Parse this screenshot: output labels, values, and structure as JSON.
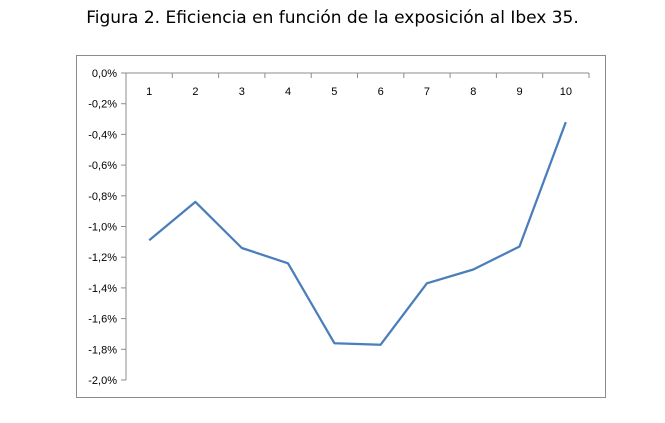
{
  "figure": {
    "title": "Figura 2. Eficiencia en función de la exposición al Ibex 35."
  },
  "chart_data": {
    "type": "line",
    "title": "",
    "xlabel": "",
    "ylabel": "",
    "categories": [
      "1",
      "2",
      "3",
      "4",
      "5",
      "6",
      "7",
      "8",
      "9",
      "10"
    ],
    "series": [
      {
        "values": [
          -1.09,
          -0.84,
          -1.14,
          -1.24,
          -1.76,
          -1.77,
          -1.37,
          -1.28,
          -1.13,
          -0.32
        ]
      }
    ],
    "ylim": [
      -2.0,
      0.0
    ],
    "y_ticks": [
      "0,0%",
      "-0,2%",
      "-0,4%",
      "-0,6%",
      "-0,8%",
      "-1,0%",
      "-1,2%",
      "-1,4%",
      "-1,6%",
      "-1,8%",
      "-2,0%"
    ],
    "y_tick_values": [
      0.0,
      -0.2,
      -0.4,
      -0.6,
      -0.8,
      -1.0,
      -1.2,
      -1.4,
      -1.6,
      -1.8,
      -2.0
    ],
    "x_axis_position": "top",
    "grid": false,
    "legend": "none",
    "line_color": "#4a7ebb"
  }
}
